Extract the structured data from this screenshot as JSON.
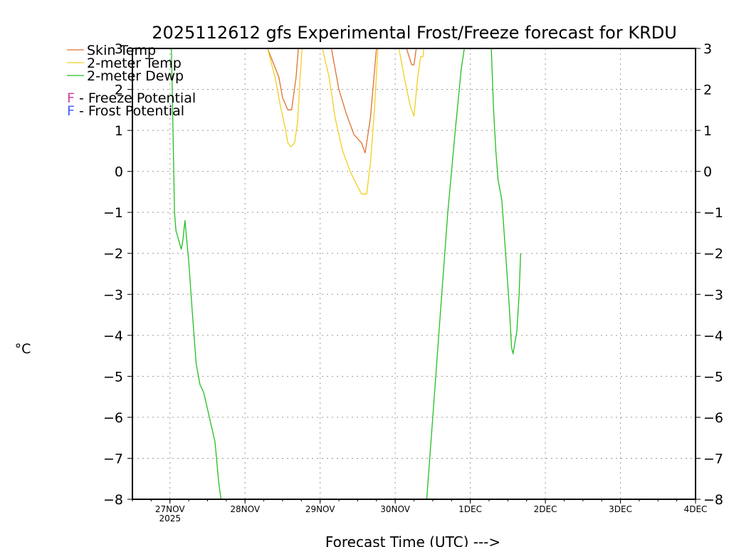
{
  "chart_data": {
    "type": "line",
    "title": "2025112612 gfs Experimental Frost/Freeze forecast for KRDU",
    "xlabel": "Forecast Time (UTC) --->",
    "ylabel": "°C",
    "ylim": [
      -8,
      3
    ],
    "xlim": [
      0,
      7.5
    ],
    "y_ticks": [
      -8,
      -7,
      -6,
      -5,
      -4,
      -3,
      -2,
      -1,
      0,
      1,
      2,
      3
    ],
    "x_ticks": [
      {
        "x": 0.5,
        "label": "27NOV",
        "sublabel": "2025"
      },
      {
        "x": 1.5,
        "label": "28NOV"
      },
      {
        "x": 2.5,
        "label": "29NOV"
      },
      {
        "x": 3.5,
        "label": "30NOV"
      },
      {
        "x": 4.5,
        "label": "1DEC"
      },
      {
        "x": 5.5,
        "label": "2DEC"
      },
      {
        "x": 6.5,
        "label": "3DEC"
      },
      {
        "x": 7.5,
        "label": "4DEC"
      }
    ],
    "grid": true,
    "legend": {
      "placement": "top-left",
      "entries": [
        {
          "label": "Skin Temp",
          "color": "#e07030"
        },
        {
          "label": "2-meter Temp",
          "color": "#f0d020"
        },
        {
          "label": "2-meter Dewp",
          "color": "#20c020"
        }
      ],
      "potentials": [
        {
          "symbol": "F",
          "label": " - Freeze Potential",
          "color": "#d040a0"
        },
        {
          "symbol": "F",
          "label": " - Frost Potential",
          "color": "#4060ff"
        }
      ]
    },
    "series": [
      {
        "name": "Skin Temp",
        "color": "#e07030",
        "segments": [
          [
            [
              1.8,
              3.0
            ],
            [
              1.95,
              2.3
            ],
            [
              2.0,
              1.8
            ],
            [
              2.07,
              1.5
            ],
            [
              2.12,
              1.5
            ],
            [
              2.18,
              2.3
            ],
            [
              2.21,
              3.0
            ]
          ],
          [
            [
              2.65,
              3.0
            ],
            [
              2.75,
              2.0
            ],
            [
              2.85,
              1.4
            ],
            [
              2.95,
              0.9
            ],
            [
              3.05,
              0.7
            ],
            [
              3.1,
              0.45
            ],
            [
              3.17,
              1.3
            ],
            [
              3.25,
              3.0
            ]
          ],
          [
            [
              3.65,
              3.0
            ],
            [
              3.72,
              2.6
            ],
            [
              3.75,
              2.6
            ],
            [
              3.78,
              3.0
            ]
          ]
        ]
      },
      {
        "name": "2-meter Temp",
        "color": "#f0d020",
        "segments": [
          [
            [
              1.8,
              3.0
            ],
            [
              1.9,
              2.3
            ],
            [
              1.97,
              1.6
            ],
            [
              2.03,
              1.1
            ],
            [
              2.07,
              0.7
            ],
            [
              2.11,
              0.6
            ],
            [
              2.16,
              0.7
            ],
            [
              2.2,
              1.2
            ],
            [
              2.23,
              2.2
            ],
            [
              2.26,
              3.0
            ]
          ],
          [
            [
              2.53,
              3.0
            ],
            [
              2.62,
              2.3
            ],
            [
              2.7,
              1.3
            ],
            [
              2.8,
              0.5
            ],
            [
              2.9,
              0.0
            ],
            [
              2.98,
              -0.3
            ],
            [
              3.05,
              -0.55
            ],
            [
              3.12,
              -0.55
            ],
            [
              3.17,
              0.2
            ],
            [
              3.22,
              1.4
            ],
            [
              3.27,
              3.0
            ]
          ],
          [
            [
              3.55,
              3.0
            ],
            [
              3.62,
              2.3
            ],
            [
              3.7,
              1.6
            ],
            [
              3.75,
              1.35
            ],
            [
              3.8,
              2.3
            ],
            [
              3.84,
              2.8
            ],
            [
              3.87,
              2.8
            ],
            [
              3.88,
              3.0
            ]
          ]
        ]
      },
      {
        "name": "2-meter Dewp",
        "color": "#20c020",
        "segments": [
          [
            [
              0.52,
              3.0
            ],
            [
              0.54,
              1.0
            ],
            [
              0.56,
              -1.0
            ],
            [
              0.58,
              -1.45
            ],
            [
              0.65,
              -1.9
            ],
            [
              0.67,
              -1.7
            ],
            [
              0.7,
              -1.2
            ],
            [
              0.75,
              -2.2
            ],
            [
              0.8,
              -3.5
            ],
            [
              0.85,
              -4.7
            ],
            [
              0.9,
              -5.2
            ],
            [
              0.95,
              -5.4
            ],
            [
              1.0,
              -5.8
            ],
            [
              1.1,
              -6.6
            ],
            [
              1.15,
              -7.6
            ],
            [
              1.18,
              -8.0
            ]
          ],
          [
            [
              3.92,
              -8.0
            ],
            [
              4.0,
              -6.0
            ],
            [
              4.1,
              -3.5
            ],
            [
              4.2,
              -1.0
            ],
            [
              4.3,
              1.0
            ],
            [
              4.38,
              2.5
            ],
            [
              4.42,
              3.0
            ]
          ],
          [
            [
              4.78,
              3.0
            ],
            [
              4.81,
              1.5
            ],
            [
              4.84,
              0.5
            ],
            [
              4.87,
              -0.2
            ],
            [
              4.92,
              -0.7
            ],
            [
              4.97,
              -2.0
            ],
            [
              5.02,
              -3.3
            ],
            [
              5.05,
              -4.3
            ],
            [
              5.07,
              -4.45
            ],
            [
              5.12,
              -3.9
            ],
            [
              5.15,
              -3.0
            ],
            [
              5.17,
              -2.0
            ]
          ]
        ]
      }
    ]
  }
}
